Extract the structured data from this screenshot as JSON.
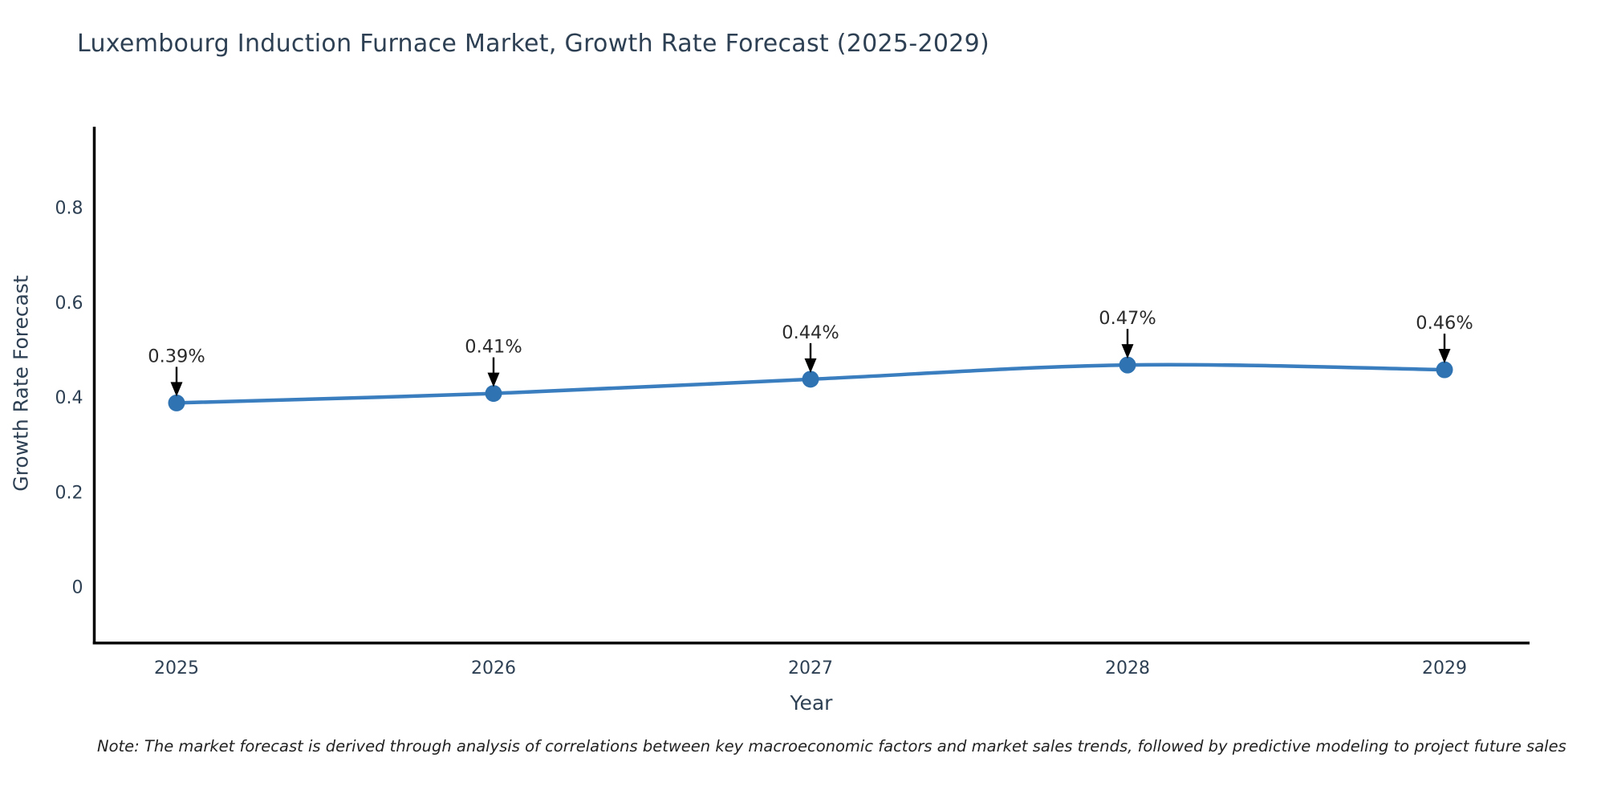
{
  "chart_data": {
    "type": "line",
    "title": "Luxembourg Induction Furnace Market, Growth Rate Forecast (2025-2029)",
    "xlabel": "Year",
    "ylabel": "Growth Rate Forecast",
    "categories": [
      "2025",
      "2026",
      "2027",
      "2028",
      "2029"
    ],
    "series": [
      {
        "name": "Growth Rate Forecast",
        "values": [
          0.39,
          0.41,
          0.44,
          0.47,
          0.46
        ],
        "point_labels": [
          "0.39%",
          "0.41%",
          "0.44%",
          "0.47%",
          "0.46%"
        ]
      }
    ],
    "yticks": [
      0,
      0.2,
      0.4,
      0.6,
      0.8
    ],
    "ylim": [
      -0.12,
      0.97
    ],
    "grid": false,
    "legend_position": "none",
    "line_smoothing": "spline",
    "marker": "circle",
    "annotation_arrows": true,
    "colors": {
      "line": "#3a7ebf",
      "marker": "#2f73b2",
      "axis": "#000000",
      "title_text": "#2e4053",
      "tick_text": "#2e4053",
      "annotation_text": "#2b2b2b",
      "annotation_arrow": "#000000",
      "background": "#ffffff"
    },
    "note": "Note: The market forecast is derived through analysis of correlations between key macroeconomic factors and market sales trends, followed by predictive modeling to project future sales"
  }
}
